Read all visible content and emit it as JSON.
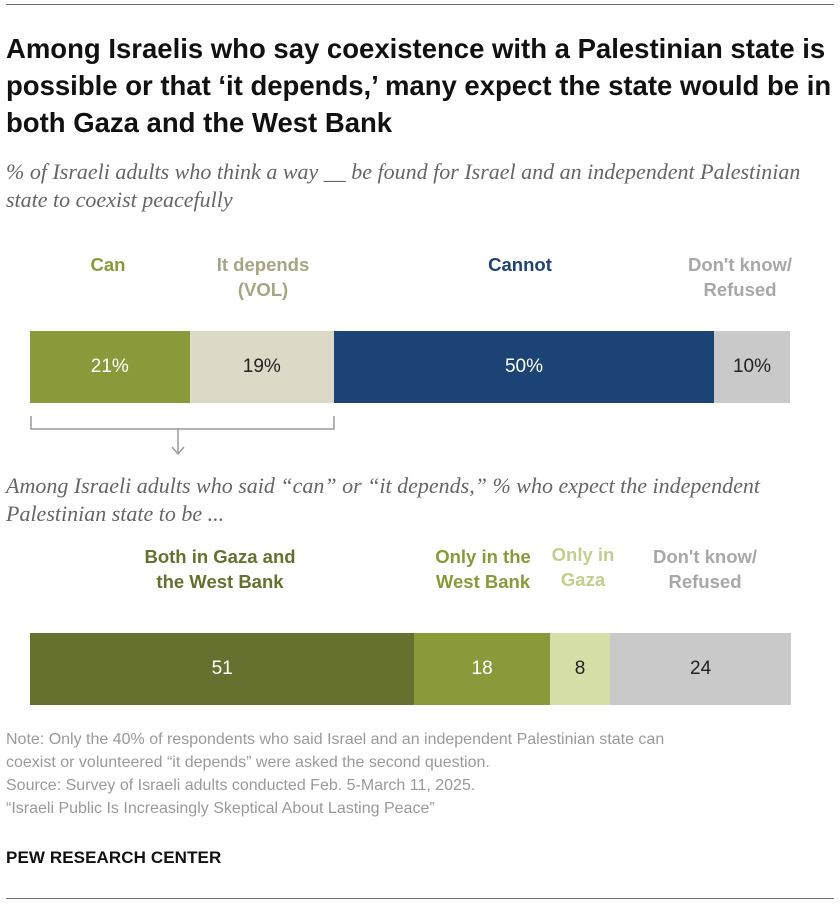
{
  "title": "Among Israelis who say coexistence with a Palestinian state is possible or that ‘it depends,’ many expect the state would be in both Gaza and the West Bank",
  "subtitle_1": "% of Israeli adults who think a way __ be found for Israel and an independent Palestinian state to coexist peacefully",
  "subtitle_2": "Among Israeli adults who said “can” or “it depends,” % who expect the independent Palestinian state to be ...",
  "colors": {
    "can": "#8a9a3b",
    "depends": "#dcd9c6",
    "cannot": "#1c4375",
    "dk": "#c9c9c9",
    "both": "#66712f",
    "west_bank": "#8a9a3b",
    "gaza": "#d7dfa9",
    "bracket": "#999999"
  },
  "chart_data": [
    {
      "type": "bar",
      "orientation": "horizontal-stacked",
      "title": "% of Israeli adults who think a way __ be found for Israel and an independent Palestinian state to coexist peacefully",
      "unit": "%",
      "categories": [
        {
          "legend": "Can",
          "value": 21,
          "label": "21%"
        },
        {
          "legend": "It depends (VOL)",
          "value": 19,
          "label": "19%"
        },
        {
          "legend": "Cannot",
          "value": 50,
          "label": "50%"
        },
        {
          "legend": "Don't know/ Refused",
          "value": 10,
          "label": "10%"
        }
      ]
    },
    {
      "type": "bar",
      "orientation": "horizontal-stacked",
      "title": "Among Israeli adults who said “can” or “it depends,” % who expect the independent Palestinian state to be ...",
      "unit": "%",
      "categories": [
        {
          "legend": "Both in Gaza and the West Bank",
          "value": 51,
          "label": "51"
        },
        {
          "legend": "Only in the West Bank",
          "value": 18,
          "label": "18"
        },
        {
          "legend": "Only in Gaza",
          "value": 8,
          "label": "8"
        },
        {
          "legend": "Don't know/ Refused",
          "value": 24,
          "label": "24"
        }
      ]
    }
  ],
  "legend1": {
    "can": "Can",
    "depends_1": "It depends",
    "depends_2": "(VOL)",
    "cannot": "Cannot",
    "dk_1": "Don't know/",
    "dk_2": "Refused"
  },
  "legend2": {
    "both_1": "Both in Gaza and",
    "both_2": "the West Bank",
    "wb_1": "Only in the",
    "wb_2": "West Bank",
    "gaza_1": "Only in",
    "gaza_2": "Gaza",
    "dk_1": "Don't know/",
    "dk_2": "Refused"
  },
  "notes": {
    "note_1": "Note: Only the 40% of respondents who said Israel and an independent Palestinian state can",
    "note_2": "coexist or volunteered “it depends” were asked the second question.",
    "source": "Source: Survey of Israeli adults conducted Feb. 5-March 11, 2025.",
    "report": "“Israeli Public Is Increasingly Skeptical About Lasting Peace”"
  },
  "brand": "PEW RESEARCH CENTER"
}
